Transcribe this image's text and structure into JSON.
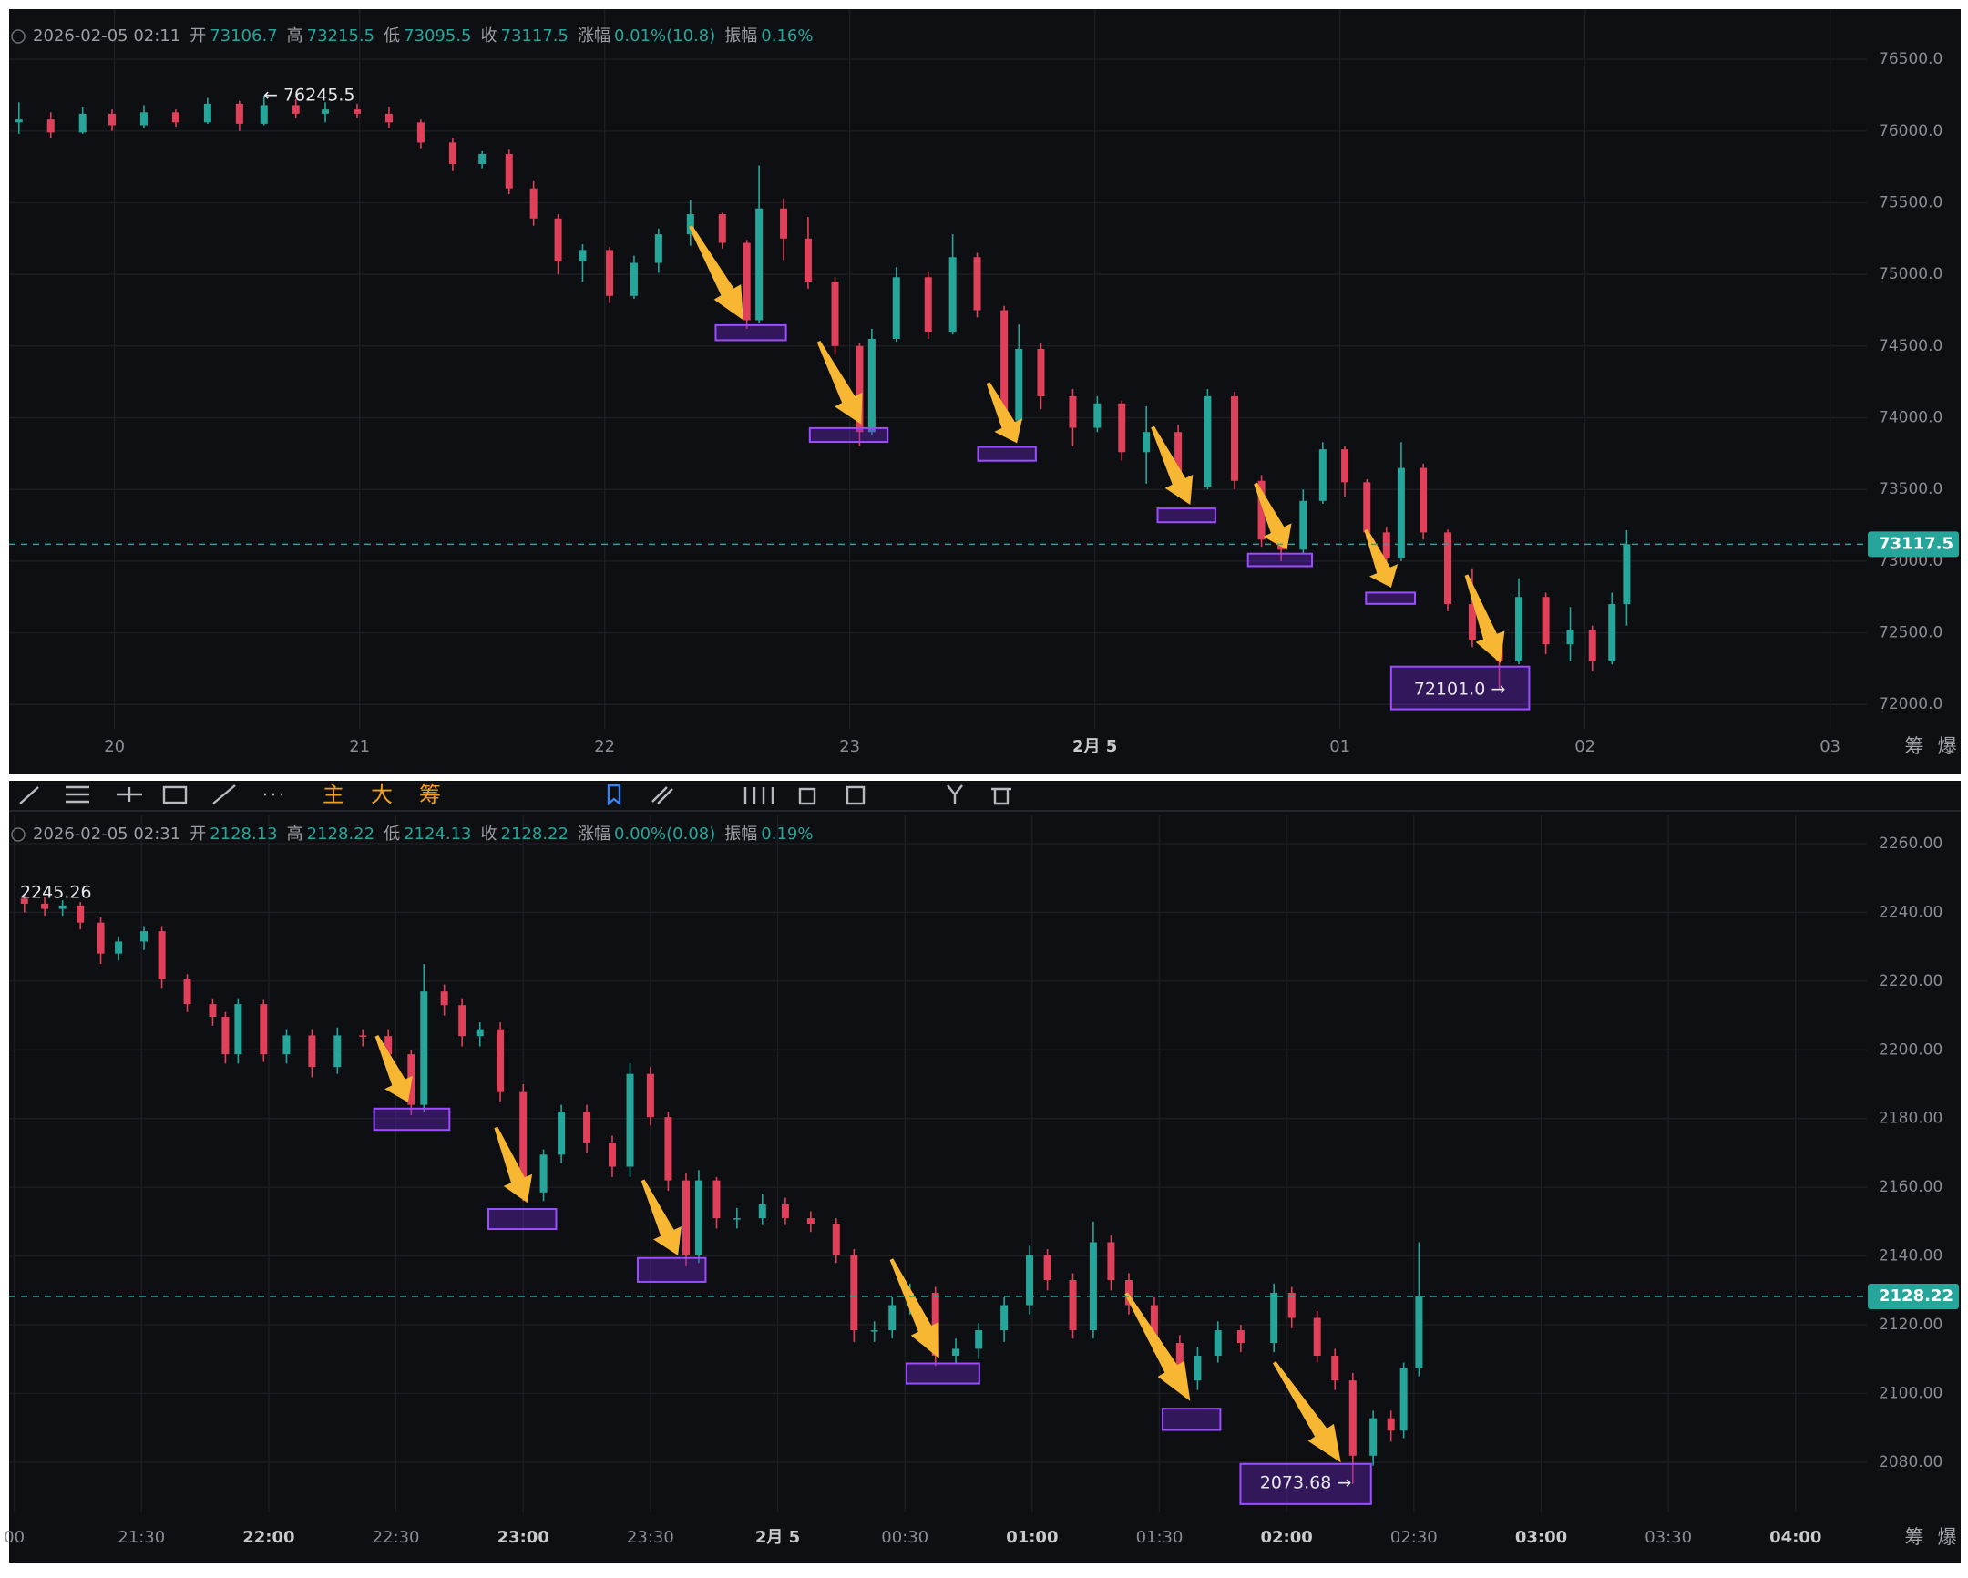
{
  "chart_data": [
    {
      "type": "candlestick",
      "header": {
        "date": "2026-02-05 02:11",
        "fields": [
          {
            "label": "开",
            "value": "73106.7"
          },
          {
            "label": "高",
            "value": "73215.5"
          },
          {
            "label": "低",
            "value": "73095.5"
          },
          {
            "label": "收",
            "value": "73117.5"
          },
          {
            "label": "涨幅",
            "value": "0.01%(10.8)"
          },
          {
            "label": "振幅",
            "value": "0.16%"
          }
        ]
      },
      "up_color": "#26a69a",
      "down_color": "#e0405a",
      "x": [
        19.61,
        19.74,
        19.87,
        19.99,
        20.12,
        20.25,
        20.38,
        20.51,
        20.61,
        20.74,
        20.86,
        20.99,
        21.12,
        21.25,
        21.38,
        21.5,
        21.61,
        21.71,
        21.81,
        21.91,
        22.02,
        22.12,
        22.22,
        22.35,
        22.48,
        22.58,
        22.63,
        22.73,
        22.83,
        22.94,
        23.04,
        23.09,
        23.19,
        23.32,
        23.42,
        23.52,
        23.63,
        23.69,
        23.78,
        23.91,
        24.01,
        24.11,
        24.21,
        24.34,
        24.46,
        24.57,
        24.68,
        24.76,
        24.85,
        24.93,
        25.02,
        25.11,
        25.19,
        25.25,
        25.34,
        25.44,
        25.54,
        25.65,
        25.73,
        25.84,
        25.94,
        26.03,
        26.11,
        26.17
      ],
      "open": [
        76060,
        76080,
        75990,
        76120,
        76040,
        76130,
        76060,
        76190,
        76050,
        76180,
        76120,
        76150,
        76120,
        76060,
        75920,
        75770,
        75840,
        75600,
        75390,
        75090,
        75170,
        74850,
        75080,
        75280,
        75420,
        75220,
        74680,
        75460,
        75250,
        74950,
        74500,
        73900,
        74550,
        74980,
        74600,
        75120,
        74750,
        73980,
        74480,
        74150,
        73930,
        74100,
        73760,
        73900,
        73520,
        74150,
        73560,
        73150,
        73080,
        73420,
        73780,
        73550,
        73200,
        73020,
        73650,
        73200,
        72700,
        72450,
        72300,
        72750,
        72420,
        72520,
        72300,
        72700
      ],
      "high": [
        76200,
        76130,
        76170,
        76150,
        76180,
        76150,
        76230,
        76210,
        76245.5,
        76220,
        76200,
        76190,
        76170,
        76080,
        75950,
        75860,
        75870,
        75650,
        75420,
        75210,
        75190,
        75130,
        75320,
        75520,
        75430,
        75240,
        75760,
        75530,
        75400,
        74980,
        74520,
        74620,
        75050,
        75020,
        75280,
        75150,
        74780,
        74650,
        74520,
        74200,
        74150,
        74120,
        74080,
        73950,
        74200,
        74180,
        73600,
        73260,
        73500,
        73830,
        73800,
        73570,
        73240,
        73830,
        73680,
        73220,
        72950,
        72500,
        72880,
        72780,
        72680,
        72550,
        72780,
        73215.5
      ],
      "low": [
        75980,
        75950,
        75980,
        76000,
        76020,
        76030,
        76050,
        76000,
        76040,
        76090,
        76060,
        76090,
        76020,
        75880,
        75720,
        75740,
        75560,
        75340,
        75000,
        74950,
        74800,
        74830,
        75010,
        75200,
        75180,
        74620,
        74660,
        75100,
        74900,
        74440,
        73800,
        73880,
        74530,
        74550,
        74580,
        74700,
        73900,
        73960,
        74060,
        73800,
        73900,
        73700,
        73540,
        73450,
        73500,
        73500,
        73100,
        73000,
        73050,
        73400,
        73450,
        73150,
        72950,
        73000,
        73150,
        72650,
        72400,
        72101,
        72280,
        72350,
        72300,
        72230,
        72280,
        72550
      ],
      "close": [
        76080,
        75990,
        76120,
        76040,
        76130,
        76060,
        76190,
        76050,
        76180,
        76120,
        76150,
        76120,
        76060,
        75920,
        75770,
        75840,
        75600,
        75390,
        75090,
        75170,
        74850,
        75080,
        75280,
        75420,
        75220,
        74680,
        75460,
        75250,
        74950,
        74500,
        73900,
        74550,
        74980,
        74600,
        75120,
        74750,
        73980,
        74480,
        74150,
        73930,
        74100,
        73760,
        73900,
        73520,
        74150,
        73560,
        73150,
        73080,
        73420,
        73780,
        73550,
        73200,
        73020,
        73650,
        73200,
        72700,
        72450,
        72300,
        72750,
        72420,
        72520,
        72300,
        72700,
        73117.5
      ],
      "xlim": [
        19.57,
        27.15
      ],
      "xticks": [
        20,
        21,
        22,
        23,
        {
          "value": 24,
          "label": "2月 5"
        },
        {
          "value": 25,
          "label": "01"
        },
        {
          "value": 26,
          "label": "02"
        },
        {
          "value": 27,
          "label": "03"
        }
      ],
      "ylim": [
        71830,
        76850
      ],
      "yticks": [
        {
          "value": 72000,
          "label": "72000.0"
        },
        {
          "value": 72500,
          "label": "72500.0"
        },
        {
          "value": 73000,
          "label": "73000.0"
        },
        {
          "value": 73500,
          "label": "73500.0"
        },
        {
          "value": 74000,
          "label": "74000.0"
        },
        {
          "value": 74500,
          "label": "74500.0"
        },
        {
          "value": 75000,
          "label": "75000.0"
        },
        {
          "value": 75500,
          "label": "75500.0"
        },
        {
          "value": 76000,
          "label": "76000.0"
        },
        {
          "value": 76500,
          "label": "76500.0"
        }
      ],
      "grid": true,
      "last_price": 73117.5,
      "high_label": "← 76245.5",
      "low_label": "72101.0 →",
      "axis_buttons": [
        "筹",
        "爆"
      ]
    },
    {
      "type": "candlestick",
      "toolbar": [
        "主",
        "大",
        "筹"
      ],
      "header": {
        "date": "2026-02-05 02:31",
        "fields": [
          {
            "label": "开",
            "value": "2128.13"
          },
          {
            "label": "高",
            "value": "2128.22"
          },
          {
            "label": "低",
            "value": "2124.13"
          },
          {
            "label": "收",
            "value": "2128.22"
          },
          {
            "label": "涨幅",
            "value": "0.00%(0.08)"
          },
          {
            "label": "振幅",
            "value": "0.19%"
          }
        ]
      },
      "up_color": "#26a69a",
      "down_color": "#e0405a",
      "x": [
        21.04,
        21.12,
        21.19,
        21.26,
        21.34,
        21.41,
        21.51,
        21.58,
        21.68,
        21.78,
        21.83,
        21.88,
        21.98,
        22.07,
        22.17,
        22.27,
        22.37,
        22.47,
        22.56,
        22.61,
        22.69,
        22.76,
        22.83,
        22.91,
        23.0,
        23.08,
        23.15,
        23.25,
        23.35,
        23.42,
        23.5,
        23.57,
        23.64,
        23.69,
        23.76,
        23.84,
        23.94,
        24.03,
        24.13,
        24.23,
        24.3,
        24.38,
        24.45,
        24.52,
        24.62,
        24.7,
        24.79,
        24.89,
        24.99,
        25.06,
        25.16,
        25.24,
        25.31,
        25.38,
        25.48,
        25.58,
        25.65,
        25.73,
        25.82,
        25.95,
        26.02,
        26.12,
        26.19,
        26.26,
        26.34,
        26.41,
        26.46,
        26.52
      ],
      "open": [
        2244,
        2242.5,
        2241,
        2242,
        2237,
        2228,
        2231.5,
        2234.5,
        2220.6,
        2213.3,
        2209.6,
        2198.7,
        2213.3,
        2198.7,
        2204.2,
        2195,
        2204.2,
        2204,
        2198.7,
        2184,
        2217,
        2213,
        2204,
        2206,
        2187.7,
        2158.5,
        2169.5,
        2182,
        2173,
        2166,
        2193,
        2180.4,
        2162,
        2140.3,
        2162,
        2151,
        2151,
        2155,
        2151,
        2149.4,
        2140.3,
        2118.4,
        2118.4,
        2125.7,
        2129.3,
        2111,
        2113,
        2118.4,
        2125.7,
        2140.3,
        2133,
        2118.4,
        2144,
        2133,
        2125.7,
        2114.7,
        2103.8,
        2111,
        2118.4,
        2114.7,
        2129.3,
        2122,
        2111,
        2103.8,
        2081.9,
        2092.8,
        2089.2,
        2107.4
      ],
      "high": [
        2245.26,
        2244.5,
        2243.5,
        2243,
        2238.5,
        2233,
        2236,
        2236,
        2222,
        2215,
        2211,
        2215,
        2214.5,
        2206,
        2206,
        2206.5,
        2206,
        2206,
        2200,
        2225,
        2219,
        2215,
        2208,
        2208,
        2190,
        2171,
        2184,
        2184,
        2175,
        2196,
        2195,
        2182,
        2164,
        2165,
        2163,
        2154,
        2158,
        2157,
        2153,
        2151,
        2142,
        2121,
        2128,
        2132,
        2131,
        2116,
        2120.5,
        2128,
        2143,
        2142,
        2135,
        2150,
        2146,
        2135,
        2128,
        2117,
        2113.5,
        2121,
        2120,
        2132,
        2131,
        2124,
        2113,
        2106,
        2095,
        2095,
        2109,
        2144
      ],
      "low": [
        2240,
        2239,
        2239,
        2235,
        2225,
        2226,
        2229,
        2218,
        2211,
        2207,
        2196,
        2196,
        2196.5,
        2196,
        2192,
        2193,
        2201,
        2196,
        2181,
        2182,
        2210,
        2201,
        2201,
        2185,
        2156,
        2156,
        2167,
        2170,
        2163,
        2163,
        2178,
        2159,
        2137,
        2138,
        2148,
        2148,
        2149,
        2149,
        2147,
        2138,
        2115,
        2115,
        2116,
        2123,
        2108,
        2109,
        2110,
        2115,
        2123,
        2130,
        2116,
        2116,
        2130,
        2123,
        2112,
        2101,
        2101,
        2109,
        2112,
        2112,
        2119,
        2109,
        2101,
        2073.68,
        2079,
        2086,
        2087,
        2105
      ],
      "close": [
        2242.5,
        2241,
        2242,
        2237,
        2228,
        2231.5,
        2234.5,
        2220.6,
        2213.3,
        2209.6,
        2198.7,
        2213.3,
        2198.7,
        2204.2,
        2195,
        2204.2,
        2204,
        2198.7,
        2184,
        2217,
        2213,
        2204,
        2206,
        2187.7,
        2158.5,
        2169.5,
        2182,
        2173,
        2166,
        2193,
        2180.4,
        2162,
        2140.3,
        2162,
        2151,
        2151,
        2155,
        2151,
        2149.4,
        2140.3,
        2118.4,
        2118.4,
        2125.7,
        2129.3,
        2111,
        2113,
        2118.4,
        2125.7,
        2140.3,
        2133,
        2118.4,
        2144,
        2133,
        2125.7,
        2114.7,
        2103.8,
        2111,
        2118.4,
        2114.7,
        2129.3,
        2122,
        2111,
        2103.8,
        2081.9,
        2092.8,
        2089.2,
        2107.4,
        2128.22
      ],
      "xlim": [
        20.98,
        28.28
      ],
      "xticks": [
        {
          "value": 21,
          "label": "00"
        },
        {
          "value": 21.5,
          "label": "21:30"
        },
        {
          "value": 22,
          "label": "22:00"
        },
        {
          "value": 22.5,
          "label": "22:30"
        },
        {
          "value": 23,
          "label": "23:00"
        },
        {
          "value": 23.5,
          "label": "23:30"
        },
        {
          "value": 24,
          "label": "2月 5"
        },
        {
          "value": 24.5,
          "label": "00:30"
        },
        {
          "value": 25,
          "label": "01:00"
        },
        {
          "value": 25.5,
          "label": "01:30"
        },
        {
          "value": 26,
          "label": "02:00"
        },
        {
          "value": 26.5,
          "label": "02:30"
        },
        {
          "value": 27,
          "label": "03:00"
        },
        {
          "value": 27.5,
          "label": "03:30"
        },
        {
          "value": 28,
          "label": "04:00"
        }
      ],
      "ylim": [
        2065.4,
        2268.2
      ],
      "yticks": [
        {
          "value": 2080,
          "label": "2080.00"
        },
        {
          "value": 2100,
          "label": "2100.00"
        },
        {
          "value": 2120,
          "label": "2120.00"
        },
        {
          "value": 2140,
          "label": "2140.00"
        },
        {
          "value": 2160,
          "label": "2160.00"
        },
        {
          "value": 2180,
          "label": "2180.00"
        },
        {
          "value": 2200,
          "label": "2200.00"
        },
        {
          "value": 2220,
          "label": "2220.00"
        },
        {
          "value": 2240,
          "label": "2240.00"
        },
        {
          "value": 2260,
          "label": "2260.00"
        }
      ],
      "grid": true,
      "last_price": 2128.22,
      "high_label": "2245.26",
      "low_label": "2073.68 →",
      "axis_buttons": [
        "筹",
        "爆"
      ]
    }
  ]
}
